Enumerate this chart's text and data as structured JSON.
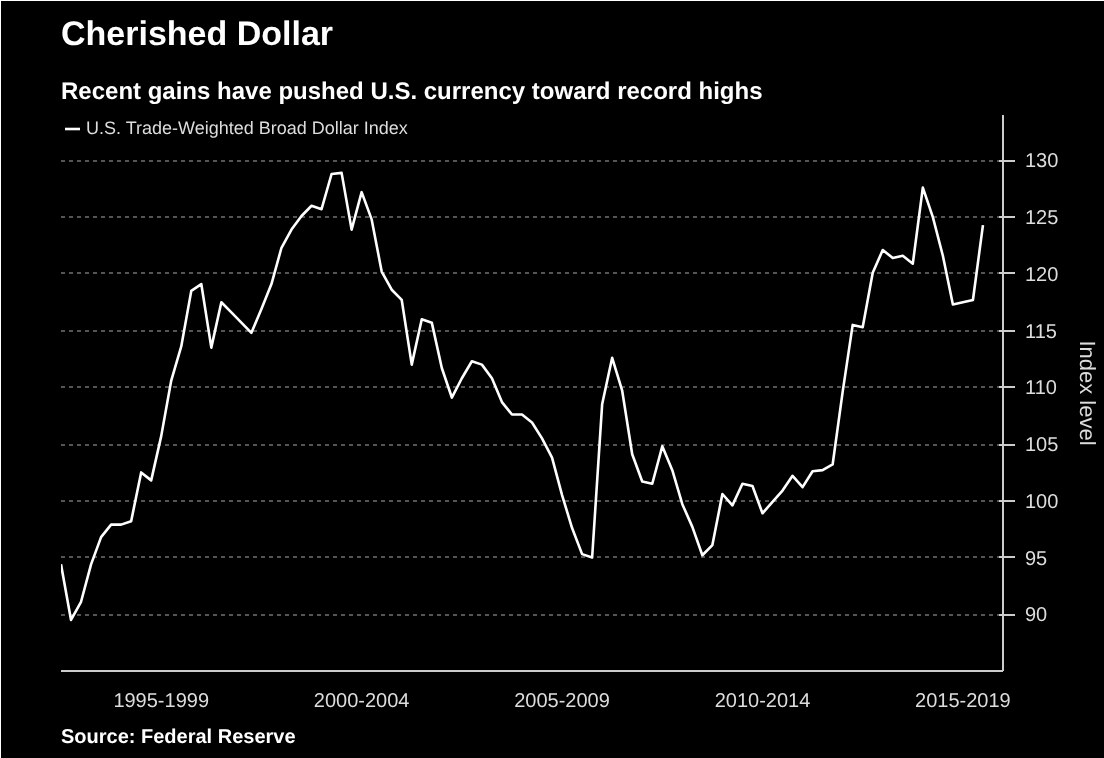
{
  "chart_data": {
    "type": "line",
    "title": "Cherished Dollar",
    "subtitle": "Recent gains have pushed U.S. currency toward record highs",
    "ylabel": "Index level",
    "annotations": [
      "Source: Federal Reserve"
    ],
    "categories": [
      null,
      null,
      null,
      null,
      null,
      null,
      null,
      null,
      null,
      null,
      "1995-1999",
      null,
      null,
      null,
      null,
      null,
      null,
      null,
      null,
      null,
      null,
      null,
      null,
      null,
      null,
      null,
      null,
      null,
      null,
      null,
      "2000-2004",
      null,
      null,
      null,
      null,
      null,
      null,
      null,
      null,
      null,
      null,
      null,
      null,
      null,
      null,
      null,
      null,
      null,
      null,
      null,
      "2005-2009",
      null,
      null,
      null,
      null,
      null,
      null,
      null,
      null,
      null,
      null,
      null,
      null,
      null,
      null,
      null,
      null,
      null,
      null,
      null,
      "2010-2014",
      null,
      null,
      null,
      null,
      null,
      null,
      null,
      null,
      null,
      null,
      null,
      null,
      null,
      null,
      null,
      null,
      null,
      null,
      null,
      "2015-2019",
      null,
      null
    ],
    "series": [
      {
        "name": "U.S. Trade-Weighted Broad Dollar Index",
        "color": "#ffffff",
        "values": [
          94.4,
          89.5,
          91.1,
          94.4,
          96.8,
          97.9,
          97.9,
          98.2,
          102.5,
          101.8,
          105.7,
          110.6,
          113.6,
          118.5,
          119.1,
          113.5,
          117.5,
          116.6,
          115.7,
          114.8,
          116.9,
          119.1,
          122.3,
          123.9,
          125.1,
          126.0,
          125.7,
          128.8,
          128.9,
          123.9,
          127.2,
          124.8,
          120.2,
          118.6,
          117.7,
          112.0,
          116.0,
          115.7,
          111.7,
          109.1,
          110.8,
          112.3,
          112.0,
          110.8,
          108.7,
          107.6,
          107.6,
          106.9,
          105.5,
          103.8,
          100.5,
          97.6,
          95.3,
          95.0,
          108.5,
          112.6,
          109.7,
          104.1,
          101.7,
          101.5,
          104.8,
          102.7,
          99.7,
          97.7,
          95.2,
          96.1,
          100.6,
          99.6,
          101.5,
          101.3,
          98.9,
          99.9,
          100.9,
          102.2,
          101.2,
          102.6,
          102.7,
          103.2,
          109.6,
          115.5,
          115.3,
          120.1,
          122.1,
          121.4,
          121.6,
          120.9,
          127.6,
          125.0,
          121.6,
          117.3,
          117.5,
          117.7,
          124.3
        ]
      }
    ],
    "ylim": [
      85,
      134
    ],
    "yticks": [
      90,
      95,
      100,
      105,
      110,
      115,
      120,
      125,
      130
    ],
    "grid": "y",
    "legend": "top left",
    "marker": "none",
    "line_style": "solid"
  }
}
